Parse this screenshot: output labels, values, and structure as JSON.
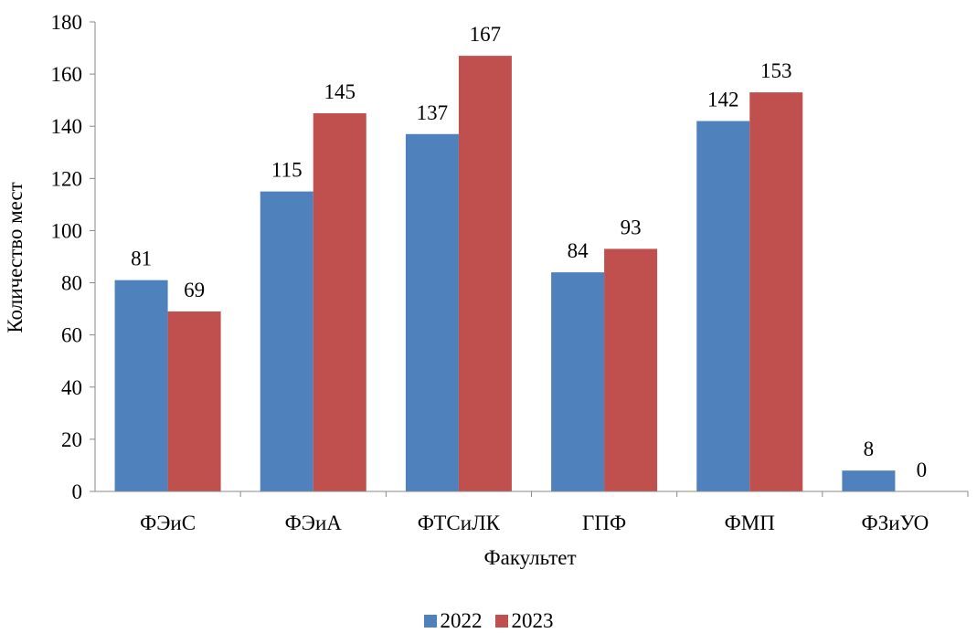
{
  "chart_data": {
    "type": "bar",
    "categories": [
      "ФЭиС",
      "ФЭиА",
      "ФТСиЛК",
      "ГПФ",
      "ФМП",
      "ФЗиУО"
    ],
    "series": [
      {
        "name": "2022",
        "values": [
          81,
          115,
          137,
          84,
          142,
          8
        ],
        "color": "#4F81BD"
      },
      {
        "name": "2023",
        "values": [
          69,
          145,
          167,
          93,
          153,
          0
        ],
        "color": "#C0504D"
      }
    ],
    "xlabel": "Факультет",
    "ylabel": "Количество мест",
    "ylim": [
      0,
      180
    ],
    "yticks": [
      0,
      20,
      40,
      60,
      80,
      100,
      120,
      140,
      160,
      180
    ],
    "grid": false,
    "legend_position": "bottom",
    "data_labels": true
  }
}
